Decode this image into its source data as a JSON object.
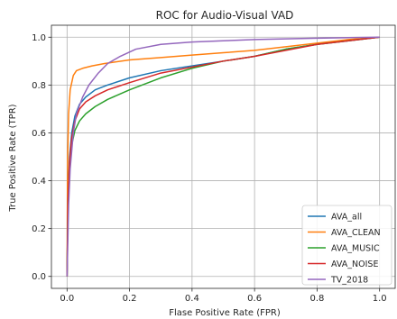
{
  "chart_data": {
    "type": "line",
    "title": "ROC for Audio-Visual VAD",
    "xlabel": "Flase Positive Rate (FPR)",
    "ylabel": "True Positive Rate (TPR)",
    "xlim": [
      -0.05,
      1.05
    ],
    "ylim": [
      -0.05,
      1.05
    ],
    "xticks": [
      "0.0",
      "0.2",
      "0.4",
      "0.6",
      "0.8",
      "1.0"
    ],
    "yticks": [
      "0.0",
      "0.2",
      "0.4",
      "0.6",
      "0.8",
      "1.0"
    ],
    "grid": true,
    "legend_position": "bottom-right",
    "series": [
      {
        "name": "AVA_all",
        "color": "#1f77b4",
        "x": [
          0,
          0.003,
          0.008,
          0.015,
          0.025,
          0.04,
          0.06,
          0.09,
          0.13,
          0.2,
          0.3,
          0.4,
          0.5,
          0.6,
          0.7,
          0.8,
          0.9,
          1.0
        ],
        "y": [
          0,
          0.35,
          0.5,
          0.6,
          0.67,
          0.72,
          0.75,
          0.78,
          0.8,
          0.83,
          0.86,
          0.88,
          0.9,
          0.92,
          0.95,
          0.97,
          0.985,
          1.0
        ]
      },
      {
        "name": "AVA_CLEAN",
        "color": "#ff7f0e",
        "x": [
          0,
          0.002,
          0.005,
          0.01,
          0.02,
          0.03,
          0.05,
          0.08,
          0.12,
          0.2,
          0.3,
          0.4,
          0.5,
          0.6,
          0.7,
          0.8,
          0.9,
          1.0
        ],
        "y": [
          0,
          0.5,
          0.68,
          0.78,
          0.84,
          0.86,
          0.87,
          0.88,
          0.89,
          0.905,
          0.915,
          0.925,
          0.935,
          0.945,
          0.96,
          0.975,
          0.99,
          1.0
        ]
      },
      {
        "name": "AVA_MUSIC",
        "color": "#2ca02c",
        "x": [
          0,
          0.003,
          0.008,
          0.015,
          0.025,
          0.04,
          0.06,
          0.09,
          0.13,
          0.2,
          0.3,
          0.4,
          0.5,
          0.6,
          0.7,
          0.8,
          0.9,
          1.0
        ],
        "y": [
          0,
          0.3,
          0.45,
          0.55,
          0.61,
          0.65,
          0.68,
          0.71,
          0.74,
          0.78,
          0.83,
          0.87,
          0.9,
          0.92,
          0.95,
          0.97,
          0.985,
          1.0
        ]
      },
      {
        "name": "AVA_NOISE",
        "color": "#d62728",
        "x": [
          0,
          0.003,
          0.008,
          0.015,
          0.025,
          0.04,
          0.06,
          0.09,
          0.13,
          0.2,
          0.3,
          0.4,
          0.5,
          0.6,
          0.7,
          0.8,
          0.9,
          1.0
        ],
        "y": [
          0,
          0.32,
          0.48,
          0.58,
          0.65,
          0.7,
          0.73,
          0.755,
          0.78,
          0.81,
          0.85,
          0.875,
          0.9,
          0.92,
          0.945,
          0.97,
          0.985,
          1.0
        ]
      },
      {
        "name": "TV_2018",
        "color": "#9467bd",
        "x": [
          0,
          0.005,
          0.01,
          0.02,
          0.03,
          0.05,
          0.07,
          0.1,
          0.13,
          0.17,
          0.22,
          0.3,
          0.4,
          0.5,
          0.6,
          0.7,
          0.8,
          0.9,
          1.0
        ],
        "y": [
          0,
          0.3,
          0.45,
          0.6,
          0.68,
          0.75,
          0.8,
          0.85,
          0.89,
          0.92,
          0.95,
          0.97,
          0.98,
          0.985,
          0.99,
          0.993,
          0.996,
          0.998,
          1.0
        ]
      }
    ]
  }
}
